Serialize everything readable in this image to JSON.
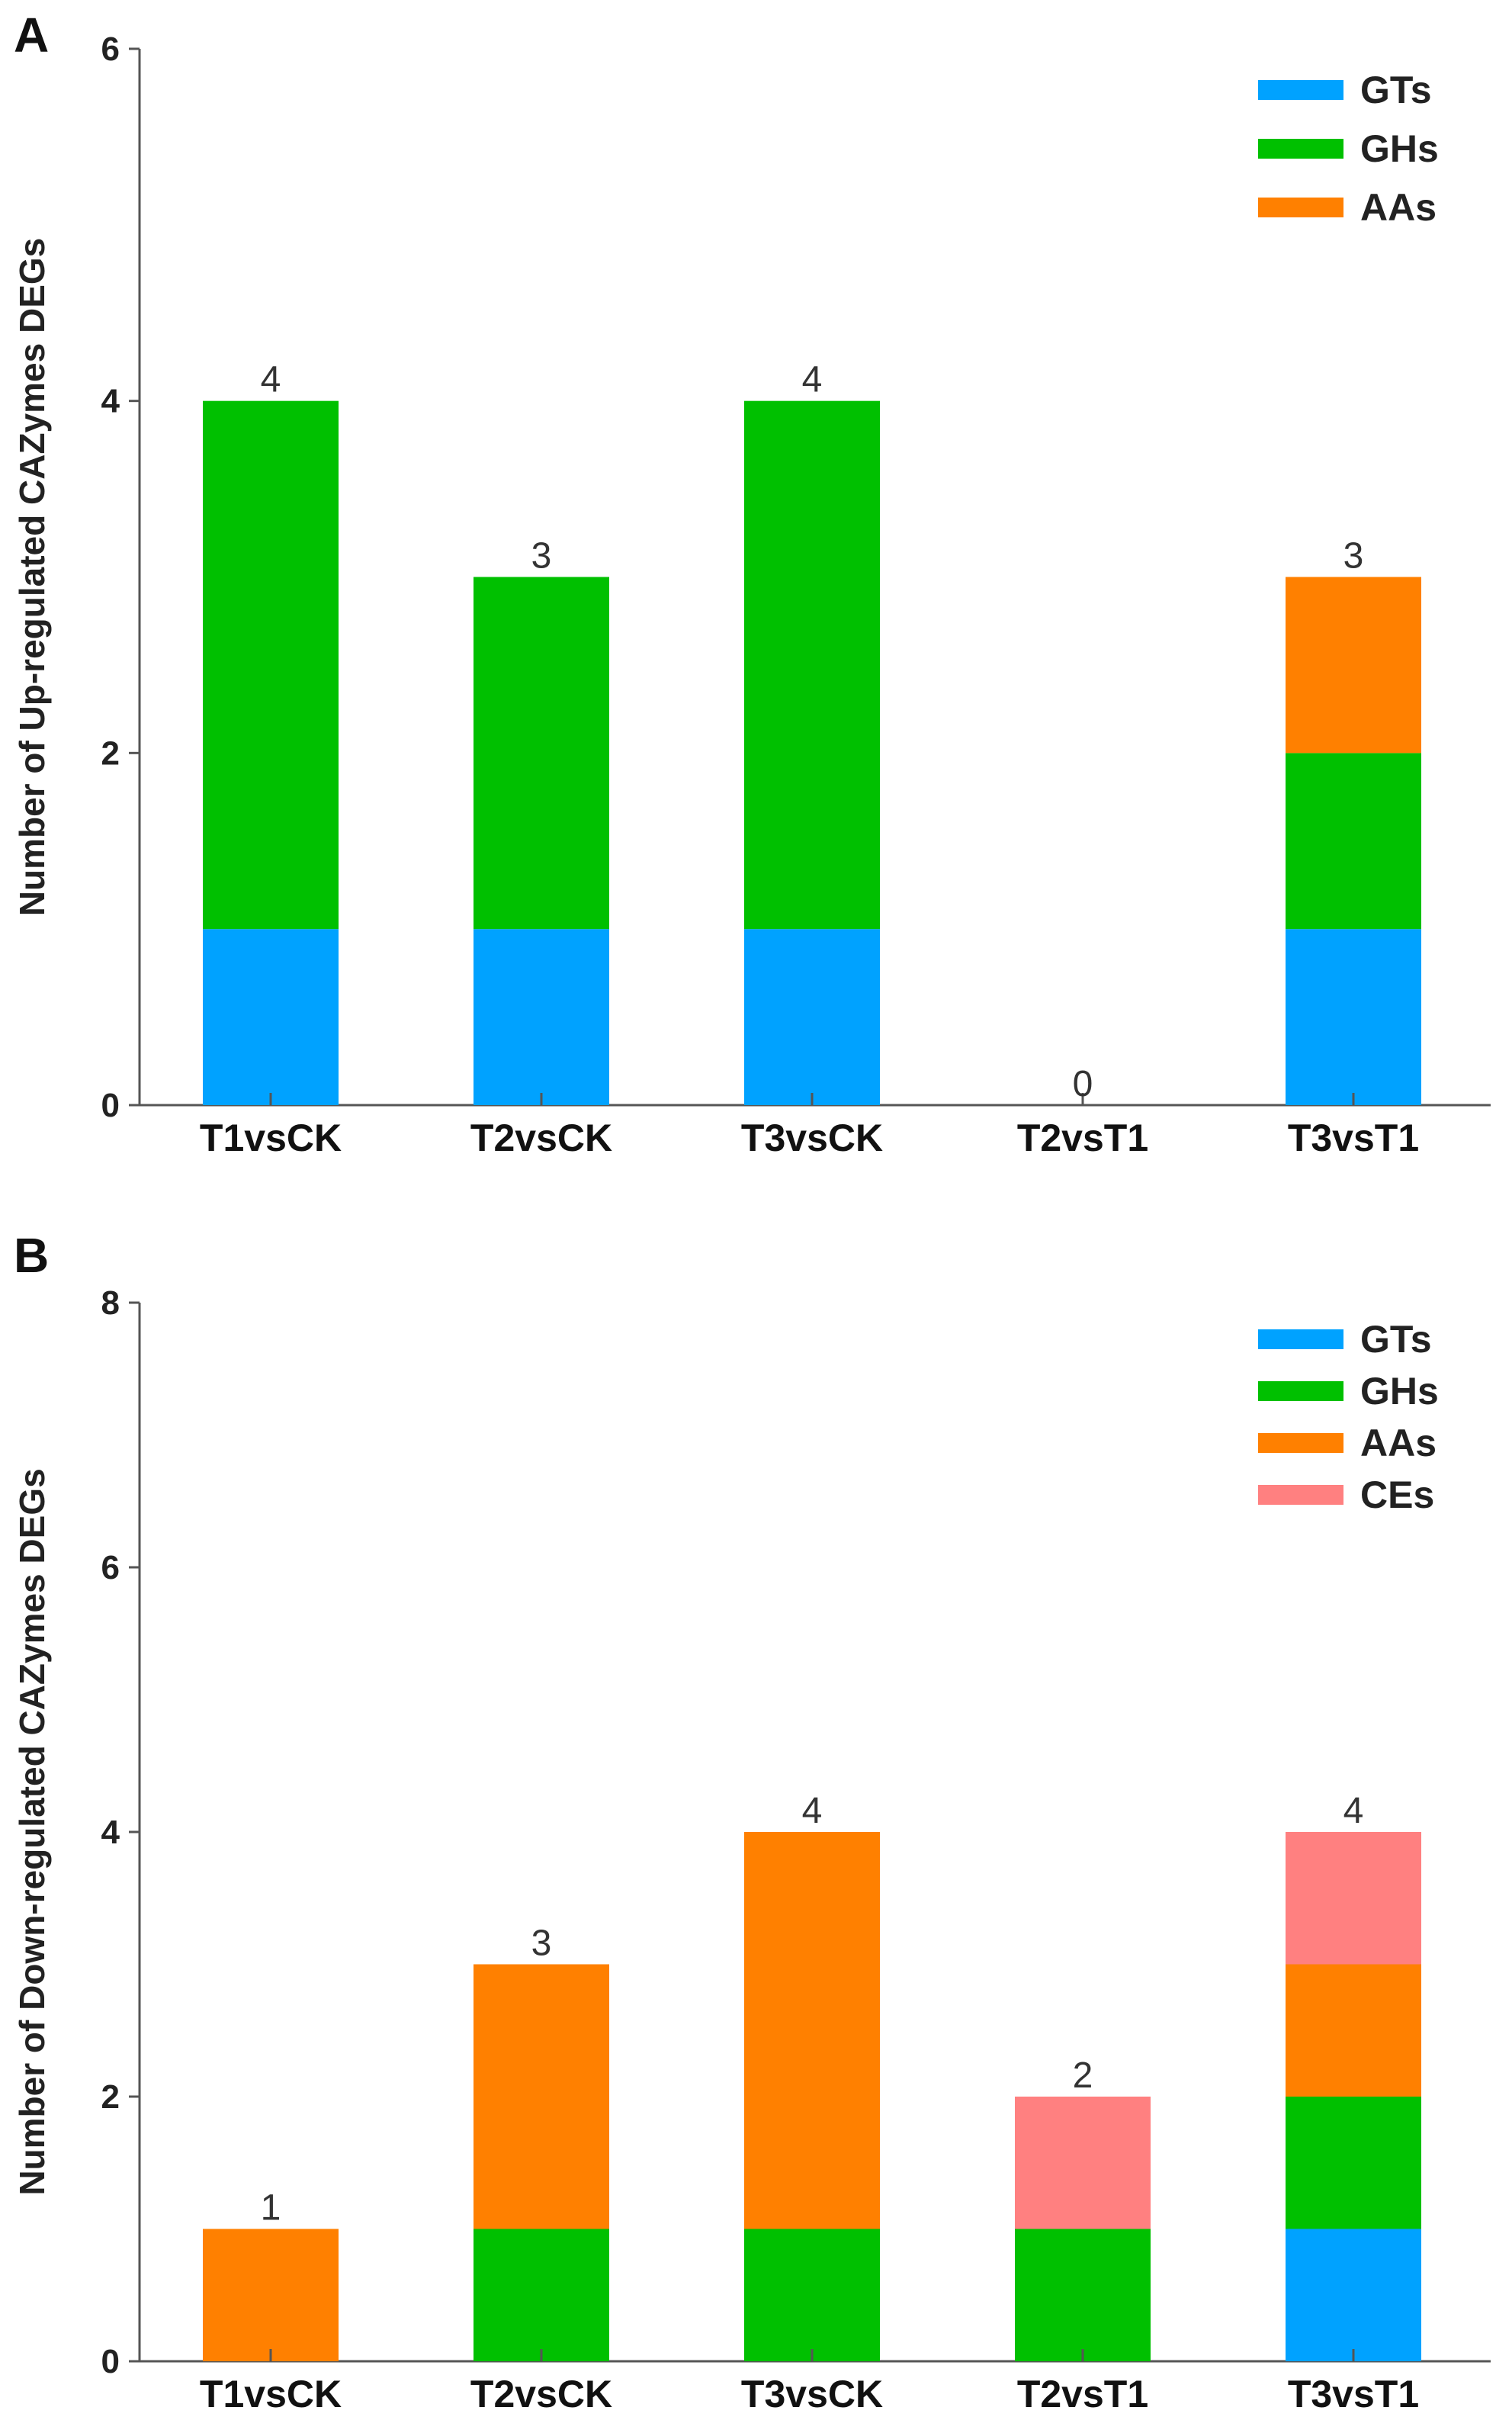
{
  "chart_data": [
    {
      "panel": "A",
      "type": "bar",
      "stacked": true,
      "title": "",
      "xlabel": "",
      "ylabel": "Number of Up-regulated CAZymes DEGs",
      "ylim": [
        0,
        6
      ],
      "yticks": [
        0,
        2,
        4,
        6
      ],
      "grid": false,
      "legend_position": "top-right",
      "categories": [
        "T1vsCK",
        "T2vsCK",
        "T3vsCK",
        "T2vsT1",
        "T3vsT1"
      ],
      "series": [
        {
          "name": "GTs",
          "color": "#00a2ff",
          "values": [
            1,
            1,
            1,
            0,
            1
          ]
        },
        {
          "name": "GHs",
          "color": "#00c000",
          "values": [
            3,
            2,
            3,
            0,
            1
          ]
        },
        {
          "name": "AAs",
          "color": "#ff8000",
          "values": [
            0,
            0,
            0,
            0,
            1
          ]
        }
      ],
      "totals": [
        "4",
        "3",
        "4",
        "0",
        "3"
      ]
    },
    {
      "panel": "B",
      "type": "bar",
      "stacked": true,
      "title": "",
      "xlabel": "",
      "ylabel": "Number of Down-regulated CAZymes DEGs",
      "ylim": [
        0,
        8
      ],
      "yticks": [
        0,
        2,
        4,
        6,
        8
      ],
      "grid": false,
      "legend_position": "top-right",
      "categories": [
        "T1vsCK",
        "T2vsCK",
        "T3vsCK",
        "T2vsT1",
        "T3vsT1"
      ],
      "series": [
        {
          "name": "GTs",
          "color": "#00a2ff",
          "values": [
            0,
            0,
            0,
            0,
            1
          ]
        },
        {
          "name": "GHs",
          "color": "#00c000",
          "values": [
            0,
            1,
            1,
            1,
            1
          ]
        },
        {
          "name": "AAs",
          "color": "#ff8000",
          "values": [
            1,
            2,
            3,
            0,
            1
          ]
        },
        {
          "name": "CEs",
          "color": "#ff8080",
          "values": [
            0,
            0,
            0,
            1,
            1
          ]
        }
      ],
      "totals": [
        "1",
        "3",
        "4",
        "2",
        "4"
      ]
    }
  ]
}
